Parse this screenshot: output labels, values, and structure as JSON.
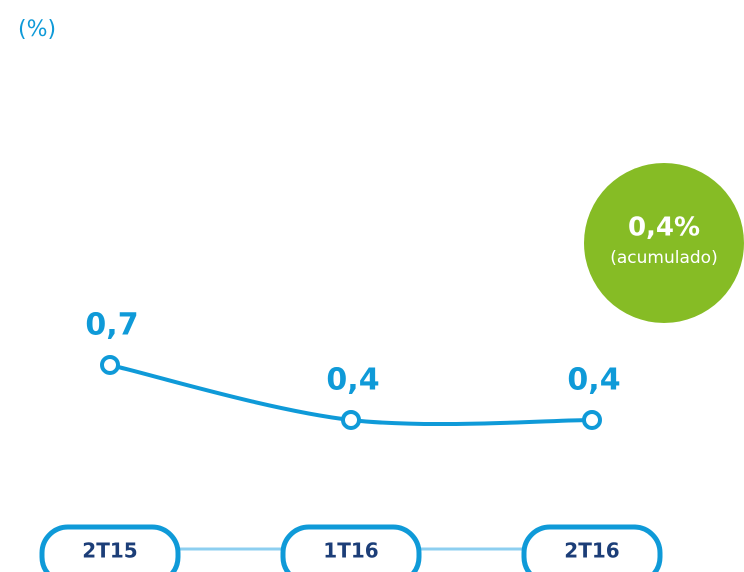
{
  "chart_data": {
    "type": "line",
    "subtitle": "(%)",
    "categories": [
      "2T15",
      "1T16",
      "2T16"
    ],
    "series": [
      {
        "color": "#0f9ad8",
        "values": [
          0.7,
          0.4,
          0.4
        ],
        "value_labels": [
          "0,7",
          "0,4",
          "0,4"
        ]
      }
    ],
    "ylim": [
      0,
      1
    ],
    "annotation": {
      "text": "0,4%",
      "subtext": "(acumulado)",
      "color": "#86bc25"
    }
  }
}
